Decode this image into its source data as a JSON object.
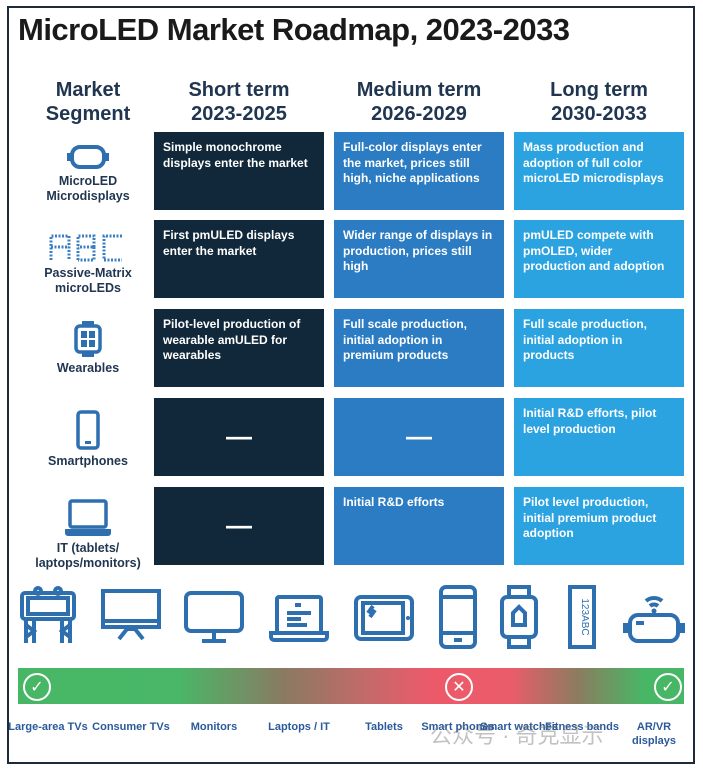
{
  "title": "MicroLED Market Roadmap, 2023-2033",
  "headers": {
    "segment": [
      "Market",
      "Segment"
    ],
    "short": [
      "Short term",
      "2023-2025"
    ],
    "medium": [
      "Medium term",
      "2026-2029"
    ],
    "long": [
      "Long term",
      "2030-2033"
    ]
  },
  "colors": {
    "short": "#10283a",
    "medium": "#2b7cc3",
    "long": "#2ba3e0",
    "text": "#1f3550",
    "good": "#47b766",
    "bad": "#ec5a6a"
  },
  "rows": [
    {
      "segment": "MicroLED Microdisplays",
      "icon": "vr-headset-icon",
      "short": "Simple monochrome displays enter the market",
      "medium": "Full-color displays enter the market, prices still high, niche applications",
      "long": "Mass production and adoption of full color microLED microdisplays"
    },
    {
      "segment": "Passive-Matrix microLEDs",
      "icon": "abc-dot-matrix-icon",
      "short": "First pmULED displays enter the market",
      "medium": "Wider range of displays in production, prices still high",
      "long": "pmULED compete with pmOLED, wider production and adoption"
    },
    {
      "segment": "Wearables",
      "icon": "smartwatch-icon",
      "short": "Pilot-level production of wearable amULED for wearables",
      "medium": "Full scale production, initial adoption in premium products",
      "long": "Full scale production, initial adoption in products"
    },
    {
      "segment": "Smartphones",
      "icon": "smartphone-icon",
      "short": "—",
      "medium": "—",
      "long": "Initial R&D efforts, pilot level production"
    },
    {
      "segment": "IT (tablets/ laptops/monitors)",
      "icon": "laptop-icon",
      "short": "—",
      "medium": "Initial R&D efforts",
      "long": "Pilot level production, initial premium product adoption"
    }
  ],
  "devices": [
    {
      "label": "Large-area TVs",
      "icon": "billboard-icon"
    },
    {
      "label": "Consumer TVs",
      "icon": "tv-icon"
    },
    {
      "label": "Monitors",
      "icon": "monitor-icon"
    },
    {
      "label": "Laptops / IT",
      "icon": "laptop-icon"
    },
    {
      "label": "Tablets",
      "icon": "tablet-icon"
    },
    {
      "label": "Smart phones",
      "icon": "smartphone-icon"
    },
    {
      "label": "Smart watches",
      "icon": "smartwatch-icon"
    },
    {
      "label": "Fitness bands",
      "icon": "fitness-band-icon"
    },
    {
      "label": "AR/VR displays",
      "icon": "vr-headset-icon"
    }
  ],
  "bar_marks": [
    {
      "position": "Large-area TVs",
      "status": "check"
    },
    {
      "position": "Smart phones",
      "status": "cross"
    },
    {
      "position": "AR/VR displays",
      "status": "check"
    }
  ],
  "watermark": "公众号 · 奇克显示"
}
